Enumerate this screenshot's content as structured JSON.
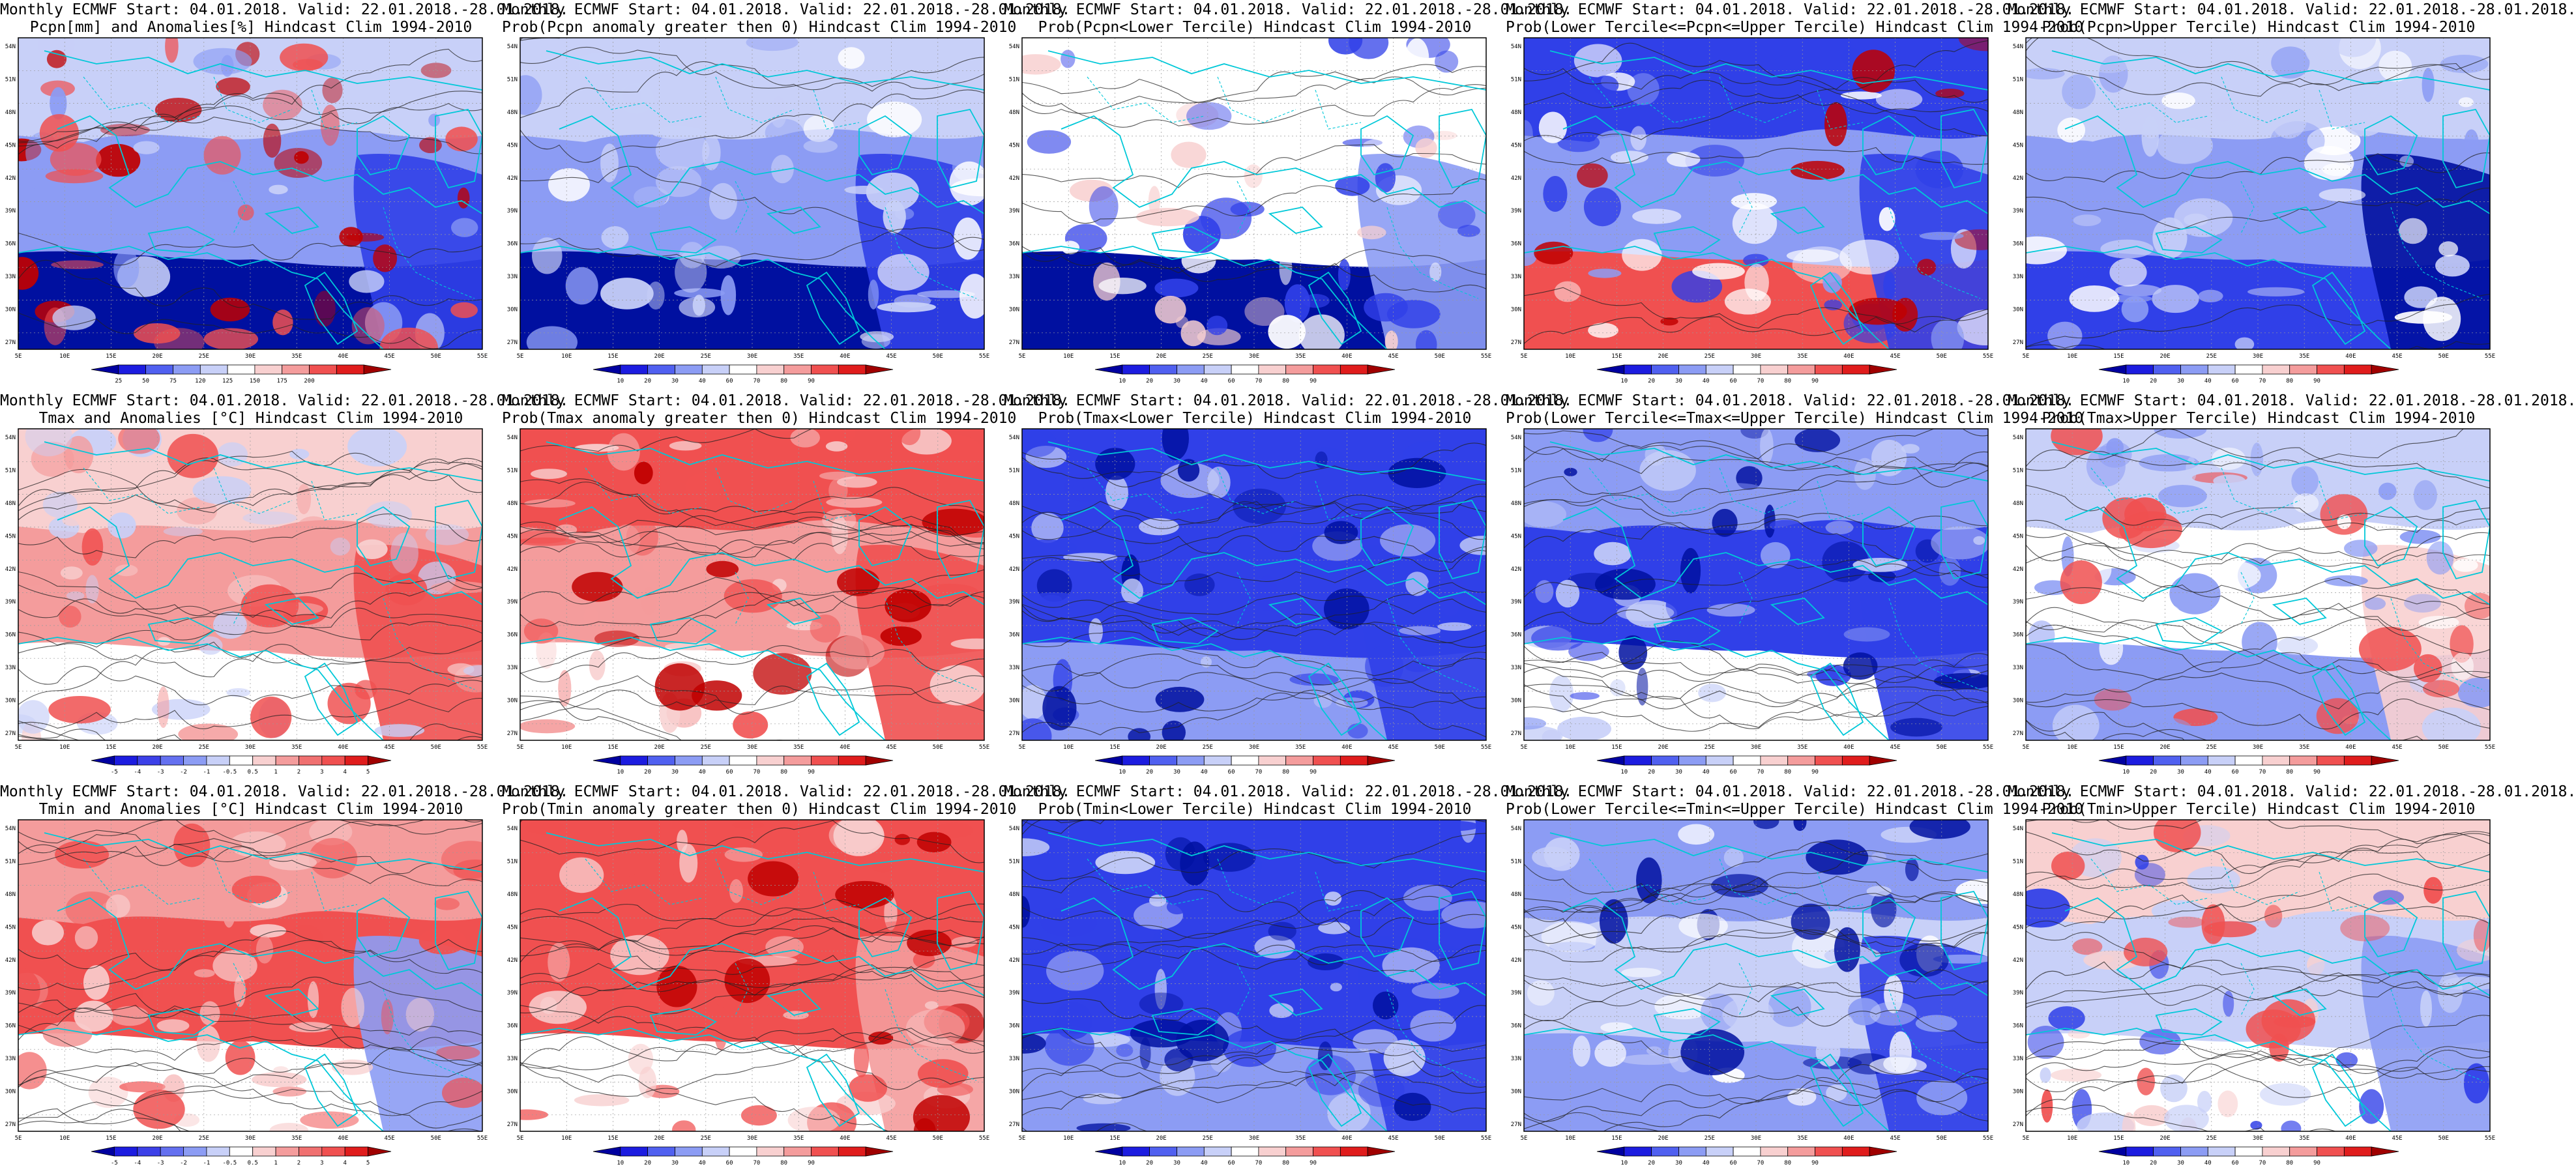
{
  "common": {
    "lat_labels": [
      "54N",
      "51N",
      "48N",
      "45N",
      "42N",
      "39N",
      "36N",
      "33N",
      "30N",
      "27N"
    ],
    "lon_labels": [
      "5E",
      "10E",
      "15E",
      "20E",
      "25E",
      "30E",
      "35E",
      "40E",
      "45E",
      "50E",
      "55E"
    ],
    "prob_colorbar": {
      "ticks": [
        "10",
        "20",
        "30",
        "40",
        "60",
        "70",
        "80",
        "90"
      ],
      "colors": [
        "#0000a0",
        "#1c1ce0",
        "#5060f0",
        "#8c9cf4",
        "#c8d0f8",
        "#ffffff",
        "#f8d0d0",
        "#f49c9c",
        "#f05050",
        "#e01c1c",
        "#a00000"
      ]
    },
    "anom_colorbar_pcpn": {
      "ticks": [
        "25",
        "50",
        "75",
        "120",
        "125",
        "150",
        "175",
        "200"
      ],
      "colors": [
        "#0000a0",
        "#1c1ce0",
        "#5060f0",
        "#8c9cf4",
        "#c8d0f8",
        "#ffffff",
        "#f8d0d0",
        "#f49c9c",
        "#f05050",
        "#e01c1c",
        "#a00000"
      ]
    },
    "anom_colorbar_temp": {
      "ticks": [
        "-5",
        "-4",
        "-3",
        "-2",
        "-1",
        "-0.5",
        "0.5",
        "1",
        "2",
        "3",
        "4",
        "5"
      ],
      "colors": [
        "#0000a0",
        "#1c1ce0",
        "#3c40e8",
        "#6470f0",
        "#8c9cf4",
        "#c8d0f8",
        "#ffffff",
        "#f8d0d0",
        "#f49c9c",
        "#f07070",
        "#f05050",
        "#e01c1c",
        "#a00000"
      ]
    },
    "color_map": {
      "ocean_dark": "#0010a0",
      "blue": "#3040e8",
      "blue_light": "#8c9cf4",
      "blue_pale": "#c8d0f8",
      "white": "#ffffff",
      "red_pale": "#f8d0d0",
      "red_light": "#f49c9c",
      "red": "#f05050",
      "red_dark": "#c00000",
      "coast_line": "#00c8d8",
      "contour_line": "#222222"
    }
  },
  "panels": [
    {
      "title1": "Monthly ECMWF Start: 04.01.2018. Valid: 22.01.2018.-28.01.2018.",
      "title2": "Pcpn[mm] and Anomalies[%] Hindcast Clim 1994-2010",
      "colorbar": "anom_colorbar_pcpn",
      "palette": "pcpn_anom"
    },
    {
      "title1": "Monthly ECMWF Start: 04.01.2018. Valid: 22.01.2018.-28.01.2018.",
      "title2": "Prob(Pcpn anomaly greater then 0) Hindcast Clim 1994-2010",
      "colorbar": "prob_colorbar",
      "palette": "pcpn_prob_pos"
    },
    {
      "title1": "Monthly ECMWF Start: 04.01.2018. Valid: 22.01.2018.-28.01.2018.",
      "title2": "Prob(Pcpn<Lower Tercile) Hindcast Clim 1994-2010",
      "colorbar": "prob_colorbar",
      "palette": "pcpn_lower"
    },
    {
      "title1": "Monthly ECMWF Start: 04.01.2018. Valid: 22.01.2018.-28.01.2018.",
      "title2": "Prob(Lower Tercile<=Pcpn<=Upper Tercile) Hindcast Clim 1994-2010",
      "colorbar": "prob_colorbar",
      "palette": "pcpn_mid"
    },
    {
      "title1": "Monthly ECMWF Start: 04.01.2018. Valid: 22.01.2018.-28.01.2018.",
      "title2": "Prob(Pcpn>Upper Tercile) Hindcast Clim 1994-2010",
      "colorbar": "prob_colorbar",
      "palette": "pcpn_upper"
    },
    {
      "title1": "Monthly ECMWF Start: 04.01.2018. Valid: 22.01.2018.-28.01.2018.",
      "title2": "Tmax and Anomalies [°C] Hindcast Clim 1994-2010",
      "colorbar": "anom_colorbar_temp",
      "palette": "tmax_anom"
    },
    {
      "title1": "Monthly ECMWF Start: 04.01.2018. Valid: 22.01.2018.-28.01.2018.",
      "title2": "Prob(Tmax anomaly greater then 0) Hindcast Clim 1994-2010",
      "colorbar": "prob_colorbar",
      "palette": "tmax_prob_pos"
    },
    {
      "title1": "Monthly ECMWF Start: 04.01.2018. Valid: 22.01.2018.-28.01.2018.",
      "title2": "Prob(Tmax<Lower Tercile) Hindcast Clim 1994-2010",
      "colorbar": "prob_colorbar",
      "palette": "tmax_lower"
    },
    {
      "title1": "Monthly ECMWF Start: 04.01.2018. Valid: 22.01.2018.-28.01.2018.",
      "title2": "Prob(Lower Tercile<=Tmax<=Upper Tercile) Hindcast Clim 1994-2010",
      "colorbar": "prob_colorbar",
      "palette": "tmax_mid"
    },
    {
      "title1": "Monthly ECMWF Start: 04.01.2018. Valid: 22.01.2018.-28.01.2018.",
      "title2": "Prob(Tmax>Upper Tercile) Hindcast Clim 1994-2010",
      "colorbar": "prob_colorbar",
      "palette": "tmax_upper"
    },
    {
      "title1": "Monthly ECMWF Start: 04.01.2018. Valid: 22.01.2018.-28.01.2018.",
      "title2": "Tmin and Anomalies [°C] Hindcast Clim 1994-2010",
      "colorbar": "anom_colorbar_temp",
      "palette": "tmin_anom"
    },
    {
      "title1": "Monthly ECMWF Start: 04.01.2018. Valid: 22.01.2018.-28.01.2018.",
      "title2": "Prob(Tmin anomaly greater then 0) Hindcast Clim 1994-2010",
      "colorbar": "prob_colorbar",
      "palette": "tmin_prob_pos"
    },
    {
      "title1": "Monthly ECMWF Start: 04.01.2018. Valid: 22.01.2018.-28.01.2018.",
      "title2": "Prob(Tmin<Lower Tercile) Hindcast Clim 1994-2010",
      "colorbar": "prob_colorbar",
      "palette": "tmin_lower"
    },
    {
      "title1": "Monthly ECMWF Start: 04.01.2018. Valid: 22.01.2018.-28.01.2018.",
      "title2": "Prob(Lower Tercile<=Tmin<=Upper Tercile) Hindcast Clim 1994-2010",
      "colorbar": "prob_colorbar",
      "palette": "tmin_mid"
    },
    {
      "title1": "Monthly ECMWF Start: 04.01.2018. Valid: 22.01.2018.-28.01.2018.",
      "title2": "Prob(Tmin>Upper Tercile) Hindcast Clim 1994-2010",
      "colorbar": "prob_colorbar",
      "palette": "tmin_upper"
    }
  ],
  "palettes": {
    "pcpn_anom": {
      "north": "blue_pale",
      "mid": "blue_light",
      "south": "ocean_dark",
      "east": "blue",
      "accent": "red",
      "accent2": "red_dark"
    },
    "pcpn_prob_pos": {
      "north": "blue_pale",
      "mid": "blue_light",
      "south": "ocean_dark",
      "east": "blue",
      "accent": "white",
      "accent2": "blue_pale"
    },
    "pcpn_lower": {
      "north": "white",
      "mid": "white",
      "south": "ocean_dark",
      "east": "blue_light",
      "accent": "red_pale",
      "accent2": "blue"
    },
    "pcpn_mid": {
      "north": "blue",
      "mid": "blue_light",
      "south": "red",
      "east": "blue",
      "accent": "red_dark",
      "accent2": "white"
    },
    "pcpn_upper": {
      "north": "blue_pale",
      "mid": "blue_light",
      "south": "blue",
      "east": "ocean_dark",
      "accent": "white",
      "accent2": "blue_pale"
    },
    "tmax_anom": {
      "north": "red_pale",
      "mid": "red_light",
      "south": "white",
      "east": "red",
      "accent": "red",
      "accent2": "blue_pale"
    },
    "tmax_prob_pos": {
      "north": "red",
      "mid": "red_light",
      "south": "white",
      "east": "red",
      "accent": "red_dark",
      "accent2": "red_pale"
    },
    "tmax_lower": {
      "north": "blue",
      "mid": "blue",
      "south": "blue_light",
      "east": "blue",
      "accent": "ocean_dark",
      "accent2": "blue_pale"
    },
    "tmax_mid": {
      "north": "blue_light",
      "mid": "blue",
      "south": "white",
      "east": "blue",
      "accent": "ocean_dark",
      "accent2": "blue_pale"
    },
    "tmax_upper": {
      "north": "blue_pale",
      "mid": "white",
      "south": "blue_light",
      "east": "red_pale",
      "accent": "red",
      "accent2": "blue_light"
    },
    "tmin_anom": {
      "north": "red_light",
      "mid": "red",
      "south": "white",
      "east": "blue_light",
      "accent": "red",
      "accent2": "red_pale"
    },
    "tmin_prob_pos": {
      "north": "red",
      "mid": "red",
      "south": "white",
      "east": "red_light",
      "accent": "red_dark",
      "accent2": "red_pale"
    },
    "tmin_lower": {
      "north": "blue",
      "mid": "blue",
      "south": "blue_light",
      "east": "blue",
      "accent": "ocean_dark",
      "accent2": "blue_pale"
    },
    "tmin_mid": {
      "north": "blue_light",
      "mid": "blue_pale",
      "south": "blue_light",
      "east": "blue",
      "accent": "ocean_dark",
      "accent2": "white"
    },
    "tmin_upper": {
      "north": "red_pale",
      "mid": "blue_pale",
      "south": "white",
      "east": "blue_light",
      "accent": "red",
      "accent2": "blue"
    }
  }
}
